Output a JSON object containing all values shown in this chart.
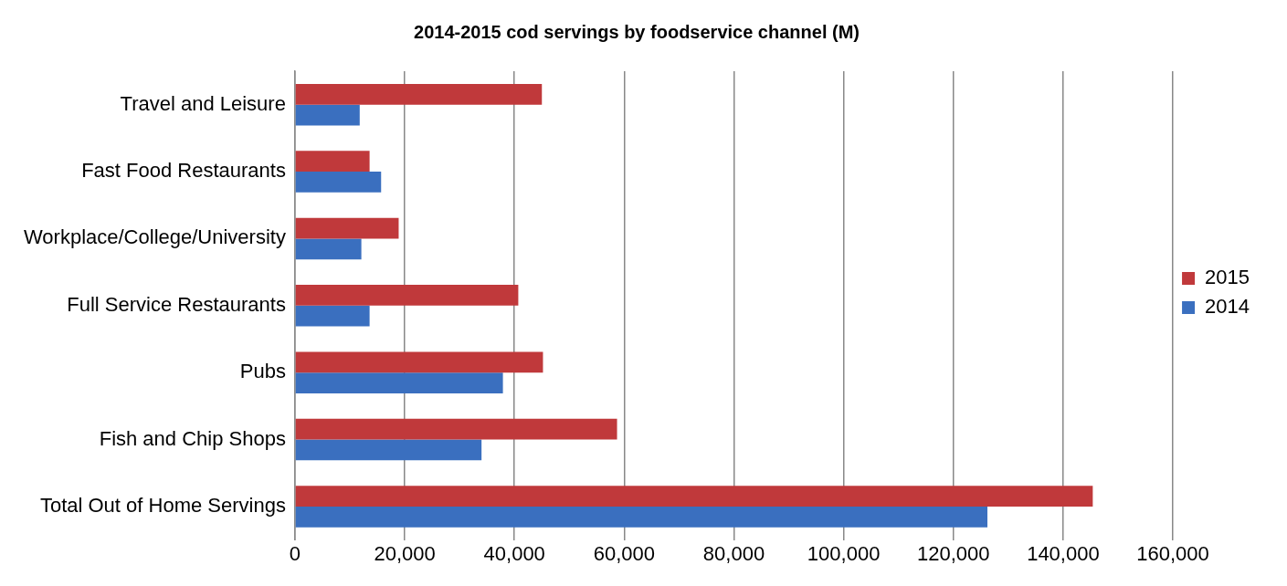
{
  "chart_data": {
    "type": "bar",
    "orientation": "horizontal",
    "title": "2014-2015 cod servings by foodservice channel (M)",
    "categories": [
      "Travel and Leisure",
      "Fast Food Restaurants",
      "Workplace/College/University",
      "Full Service Restaurants",
      "Pubs",
      "Fish and Chip Shops",
      "Total Out of Home Servings"
    ],
    "series": [
      {
        "name": "2015",
        "color": "#c0393b",
        "values": [
          45000,
          13600,
          18900,
          40700,
          45200,
          58700,
          145400
        ]
      },
      {
        "name": "2014",
        "color": "#3a6fbf",
        "values": [
          11800,
          15700,
          12100,
          13600,
          37900,
          34000,
          126200
        ]
      }
    ],
    "xlim": [
      0,
      160000
    ],
    "xticks": [
      {
        "value": 0,
        "label": "0"
      },
      {
        "value": 20000,
        "label": "20,000"
      },
      {
        "value": 40000,
        "label": "40,000"
      },
      {
        "value": 60000,
        "label": "60,000"
      },
      {
        "value": 80000,
        "label": "80,000"
      },
      {
        "value": 100000,
        "label": "100,000"
      },
      {
        "value": 120000,
        "label": "120,000"
      },
      {
        "value": 140000,
        "label": "140,000"
      },
      {
        "value": 160000,
        "label": "160,000"
      }
    ],
    "grid": "x",
    "legend": "right"
  }
}
